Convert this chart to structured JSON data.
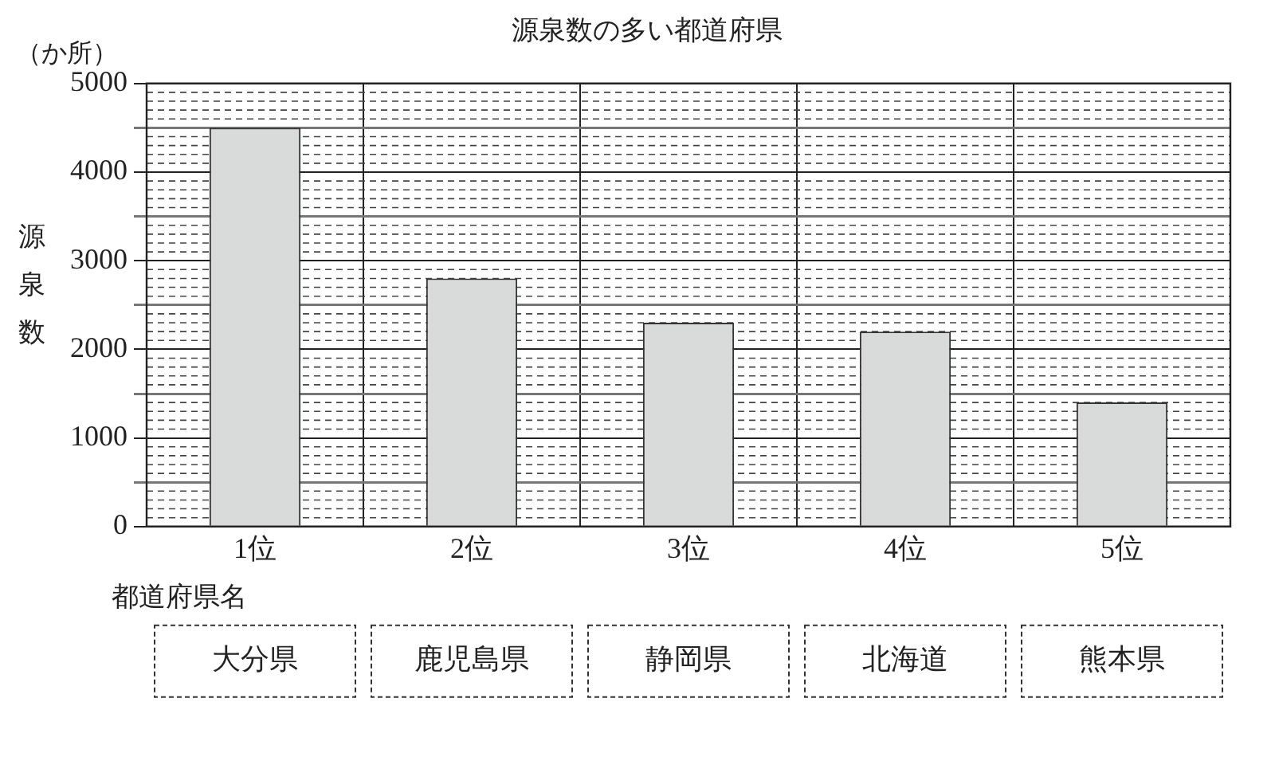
{
  "chart_data": {
    "type": "bar",
    "title": "源泉数の多い都道府県",
    "ylabel": "源泉数",
    "xlabel": "都道府県名",
    "categories": [
      "1位",
      "2位",
      "3位",
      "4位",
      "5位"
    ],
    "values": [
      4500,
      2800,
      2300,
      2200,
      1400
    ],
    "color": "#d9dada",
    "ylim": [
      0,
      5000
    ],
    "yticks": [
      0,
      {
        "value": 500,
        "label": null
      },
      1000,
      {
        "value": 1500,
        "label": null
      },
      2000,
      {
        "value": 2500,
        "label": null
      },
      3000,
      {
        "value": 3500,
        "label": null
      },
      4000,
      {
        "value": 4500,
        "label": null
      },
      5000
    ],
    "grid": true,
    "legend": false,
    "annotations": [
      "（か所）",
      "大分県",
      "鹿児島県",
      "静岡県",
      "北海道",
      "熊本県"
    ]
  }
}
